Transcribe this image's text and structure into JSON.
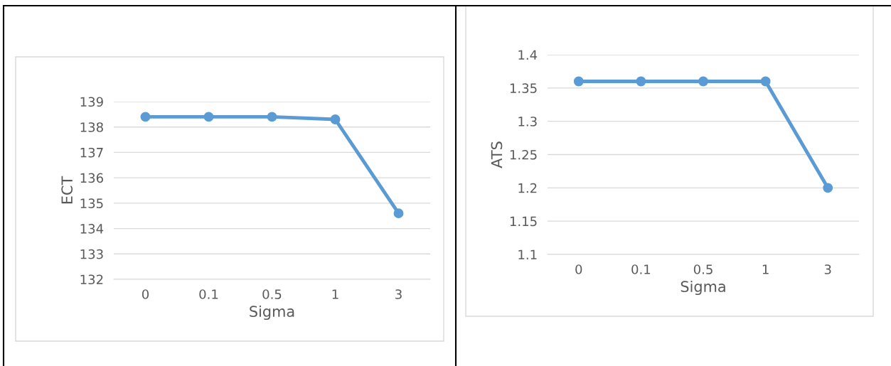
{
  "chart_data": [
    {
      "type": "line",
      "xlabel": "Sigma",
      "ylabel": "ECT",
      "categories": [
        "0",
        "0.1",
        "0.5",
        "1",
        "3"
      ],
      "series": [
        {
          "color": "#5b9bd5",
          "values": [
            138.4,
            138.4,
            138.4,
            138.3,
            134.6
          ]
        }
      ],
      "ylim": [
        132,
        139
      ],
      "yticks": [
        132,
        133,
        134,
        135,
        136,
        137,
        138,
        139
      ],
      "grid": "y",
      "marker": "circle",
      "line_style": "solid"
    },
    {
      "type": "line",
      "xlabel": "Sigma",
      "ylabel": "ATS",
      "categories": [
        "0",
        "0.1",
        "0.5",
        "1",
        "3"
      ],
      "series": [
        {
          "color": "#5b9bd5",
          "values": [
            1.36,
            1.36,
            1.36,
            1.36,
            1.2
          ]
        }
      ],
      "ylim": [
        1.1,
        1.4
      ],
      "yticks": [
        1.1,
        1.15,
        1.2,
        1.25,
        1.3,
        1.35,
        1.4
      ],
      "grid": "y",
      "marker": "circle",
      "line_style": "solid"
    }
  ]
}
